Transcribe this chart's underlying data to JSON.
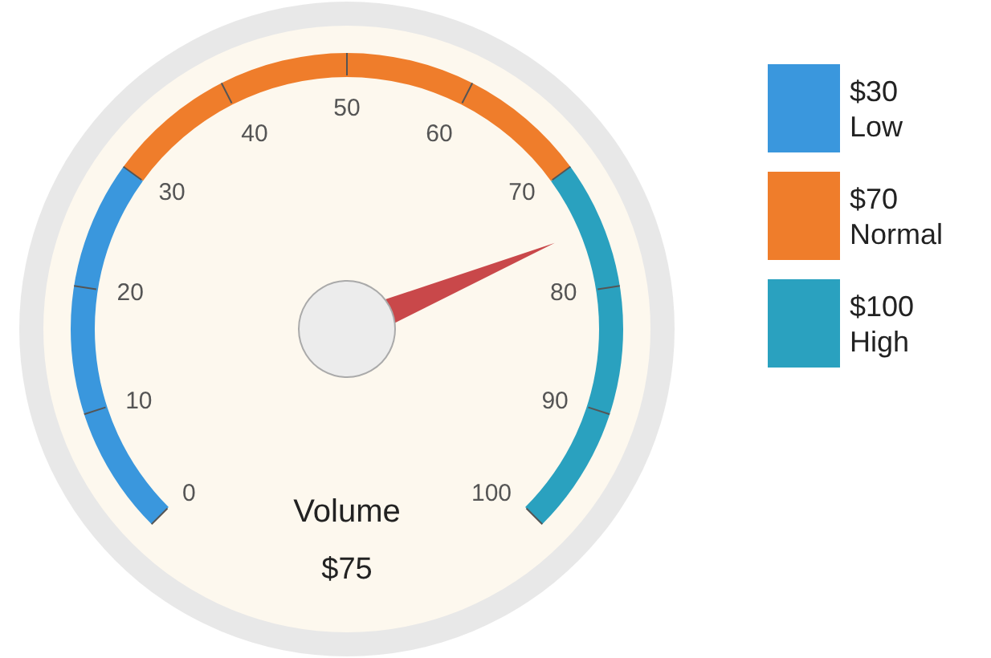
{
  "chart_data": {
    "type": "other",
    "categories": [
      "Low",
      "Normal",
      "High",
      "Volume"
    ],
    "values": [
      30,
      70,
      100,
      75
    ],
    "value_labels": [
      "$30",
      "$70",
      "$100",
      "$75"
    ],
    "colors": [
      "#3a97dd",
      "#ef7d2b",
      "#2aa1bf",
      "#c9484a"
    ],
    "annotations": [
      "0",
      "10",
      "20",
      "30",
      "40",
      "50",
      "60",
      "70",
      "80",
      "90",
      "100"
    ]
  }
}
